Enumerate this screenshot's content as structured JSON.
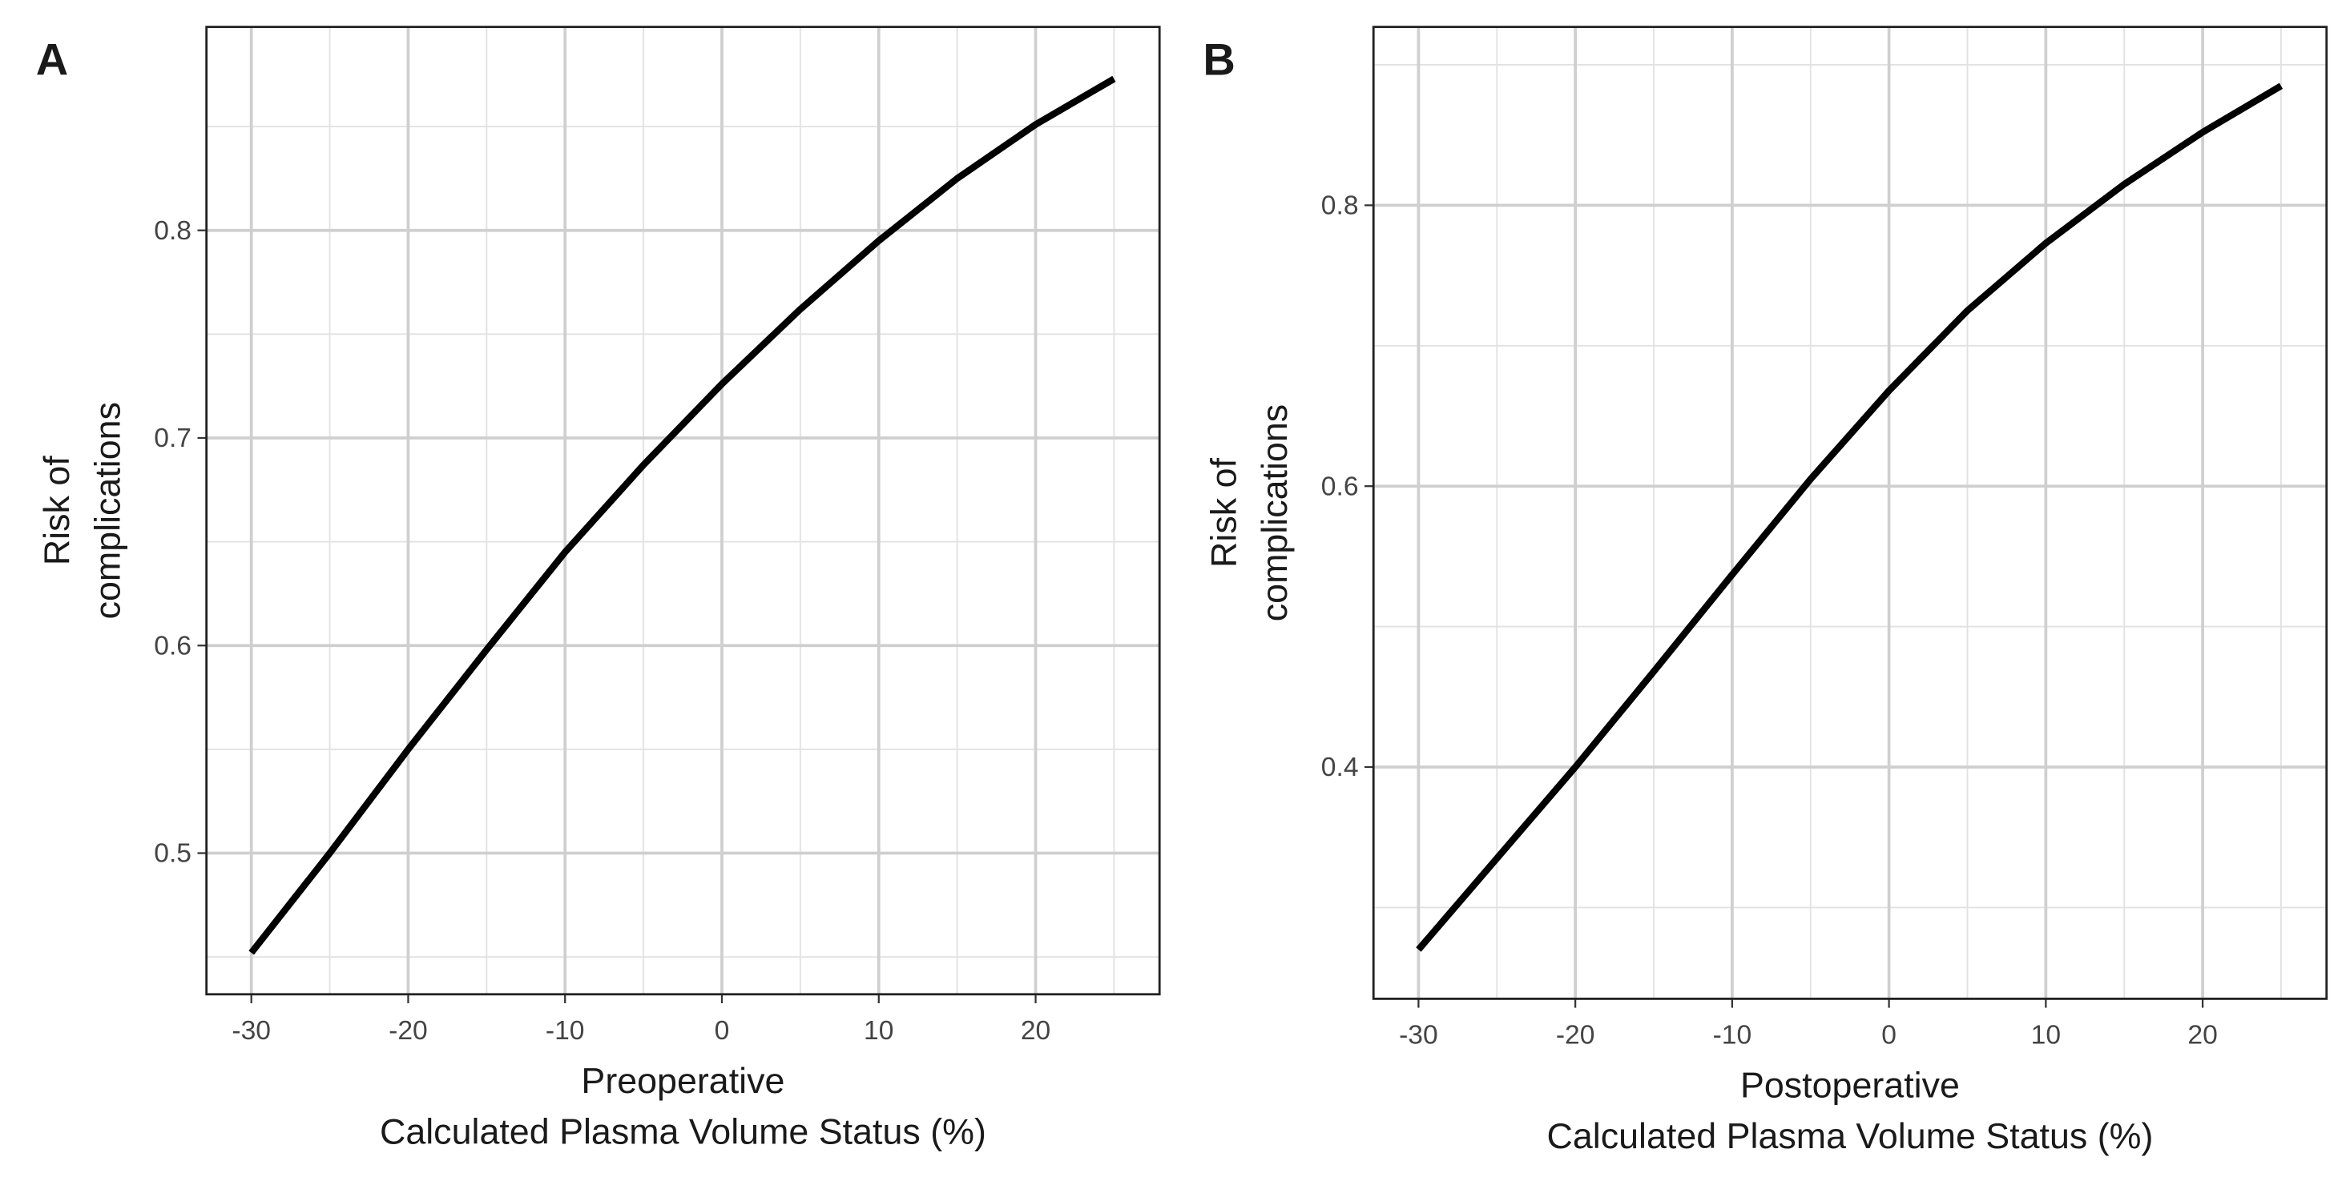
{
  "chart_data": [
    {
      "type": "line",
      "title": "A",
      "x_label": [
        "Preoperative",
        "Calculated Plasma Volume Status (%)"
      ],
      "y_label": [
        "Risk of",
        "complications"
      ],
      "x": [
        -30,
        -25,
        -20,
        -15,
        -10,
        -5,
        0,
        5,
        10,
        15,
        20,
        25
      ],
      "series": [
        {
          "name": "Preoperative",
          "color": "#000000",
          "values": [
            0.452,
            0.5,
            0.55,
            0.598,
            0.645,
            0.687,
            0.726,
            0.762,
            0.795,
            0.825,
            0.851,
            0.873
          ]
        }
      ],
      "xlim": [
        -32.86,
        27.9
      ],
      "xticks": [
        -30,
        -20,
        -10,
        0,
        10,
        20
      ],
      "ylim": [
        0.432,
        0.898
      ],
      "yticks": [
        0.5,
        0.6,
        0.7,
        0.8
      ],
      "grid": true
    },
    {
      "type": "line",
      "title": "B",
      "x_label": [
        "Postoperative",
        "Calculated Plasma Volume Status (%)"
      ],
      "y_label": [
        "Risk of",
        "complications"
      ],
      "x": [
        -30,
        -25,
        -20,
        -15,
        -10,
        -5,
        0,
        5,
        10,
        15,
        20,
        25
      ],
      "series": [
        {
          "name": "Postoperative",
          "color": "#000000",
          "values": [
            0.27,
            0.335,
            0.4,
            0.468,
            0.537,
            0.605,
            0.668,
            0.725,
            0.773,
            0.815,
            0.852,
            0.885
          ]
        }
      ],
      "xlim": [
        -32.87,
        27.9
      ],
      "xticks": [
        -30,
        -20,
        -10,
        0,
        10,
        20
      ],
      "ylim": [
        0.235,
        0.927
      ],
      "yticks": [
        0.4,
        0.6,
        0.8
      ],
      "grid": true
    }
  ]
}
